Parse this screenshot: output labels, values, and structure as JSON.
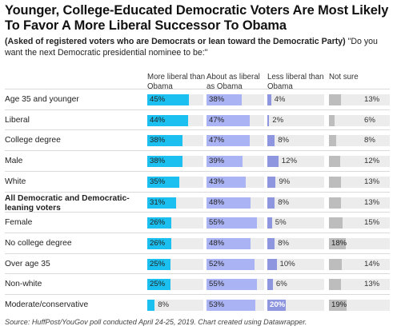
{
  "title": "Younger, College-Educated Democratic Voters Are Most Likely To Favor A More Liberal Successor To Obama",
  "subtitle_bold": "(Asked of registered voters who are Democrats or lean toward the Democratic Party)",
  "subtitle_rest": " \"Do you want the next Democratic presidential nominee to be:\"",
  "source": "Source: HuffPost/YouGov poll conducted April 24-25, 2019. Chart created using Datawrapper.",
  "colors": {
    "more_liberal": "#1cc0f0",
    "about_as_liberal": "#aab4f4",
    "less_liberal": "#8f96e0",
    "not_sure": "#bdbdbd",
    "track": "#ececec"
  },
  "chart_data": {
    "type": "bar",
    "columns": [
      "More liberal than Obama",
      "About as liberal as Obama",
      "Less liberal than Obama",
      "Not sure"
    ],
    "categories": [
      "Age 35 and younger",
      "Liberal",
      "College degree",
      "Male",
      "White",
      "All Democratic and Democratic-leaning voters",
      "Female",
      "No college degree",
      "Over age 35",
      "Non-white",
      "Moderate/conservative"
    ],
    "series": [
      {
        "name": "More liberal than Obama",
        "values": [
          45,
          44,
          38,
          38,
          35,
          31,
          26,
          26,
          25,
          25,
          8
        ]
      },
      {
        "name": "About as liberal as Obama",
        "values": [
          38,
          47,
          47,
          39,
          43,
          48,
          55,
          48,
          52,
          55,
          53
        ]
      },
      {
        "name": "Less liberal than Obama",
        "values": [
          4,
          2,
          8,
          12,
          9,
          8,
          5,
          8,
          10,
          6,
          20
        ]
      },
      {
        "name": "Not sure",
        "values": [
          13,
          6,
          8,
          12,
          13,
          13,
          15,
          18,
          14,
          13,
          19
        ]
      }
    ],
    "value_labels": [
      [
        "45%",
        "38%",
        "4%",
        "13%"
      ],
      [
        "44%",
        "47%",
        "2%",
        "6%"
      ],
      [
        "38%",
        "47%",
        "8%",
        "8%"
      ],
      [
        "38%",
        "39%",
        "12%",
        "12%"
      ],
      [
        "35%",
        "43%",
        "9%",
        "13%"
      ],
      [
        "31%",
        "48%",
        "8%",
        "13%"
      ],
      [
        "26%",
        "55%",
        "5%",
        "15%"
      ],
      [
        "26%",
        "48%",
        "8%",
        "18%"
      ],
      [
        "25%",
        "52%",
        "10%",
        "14%"
      ],
      [
        "25%",
        "55%",
        "6%",
        "13%"
      ],
      [
        "8%",
        "53%",
        "20%",
        "19%"
      ]
    ],
    "bold_rows": [
      5
    ]
  }
}
